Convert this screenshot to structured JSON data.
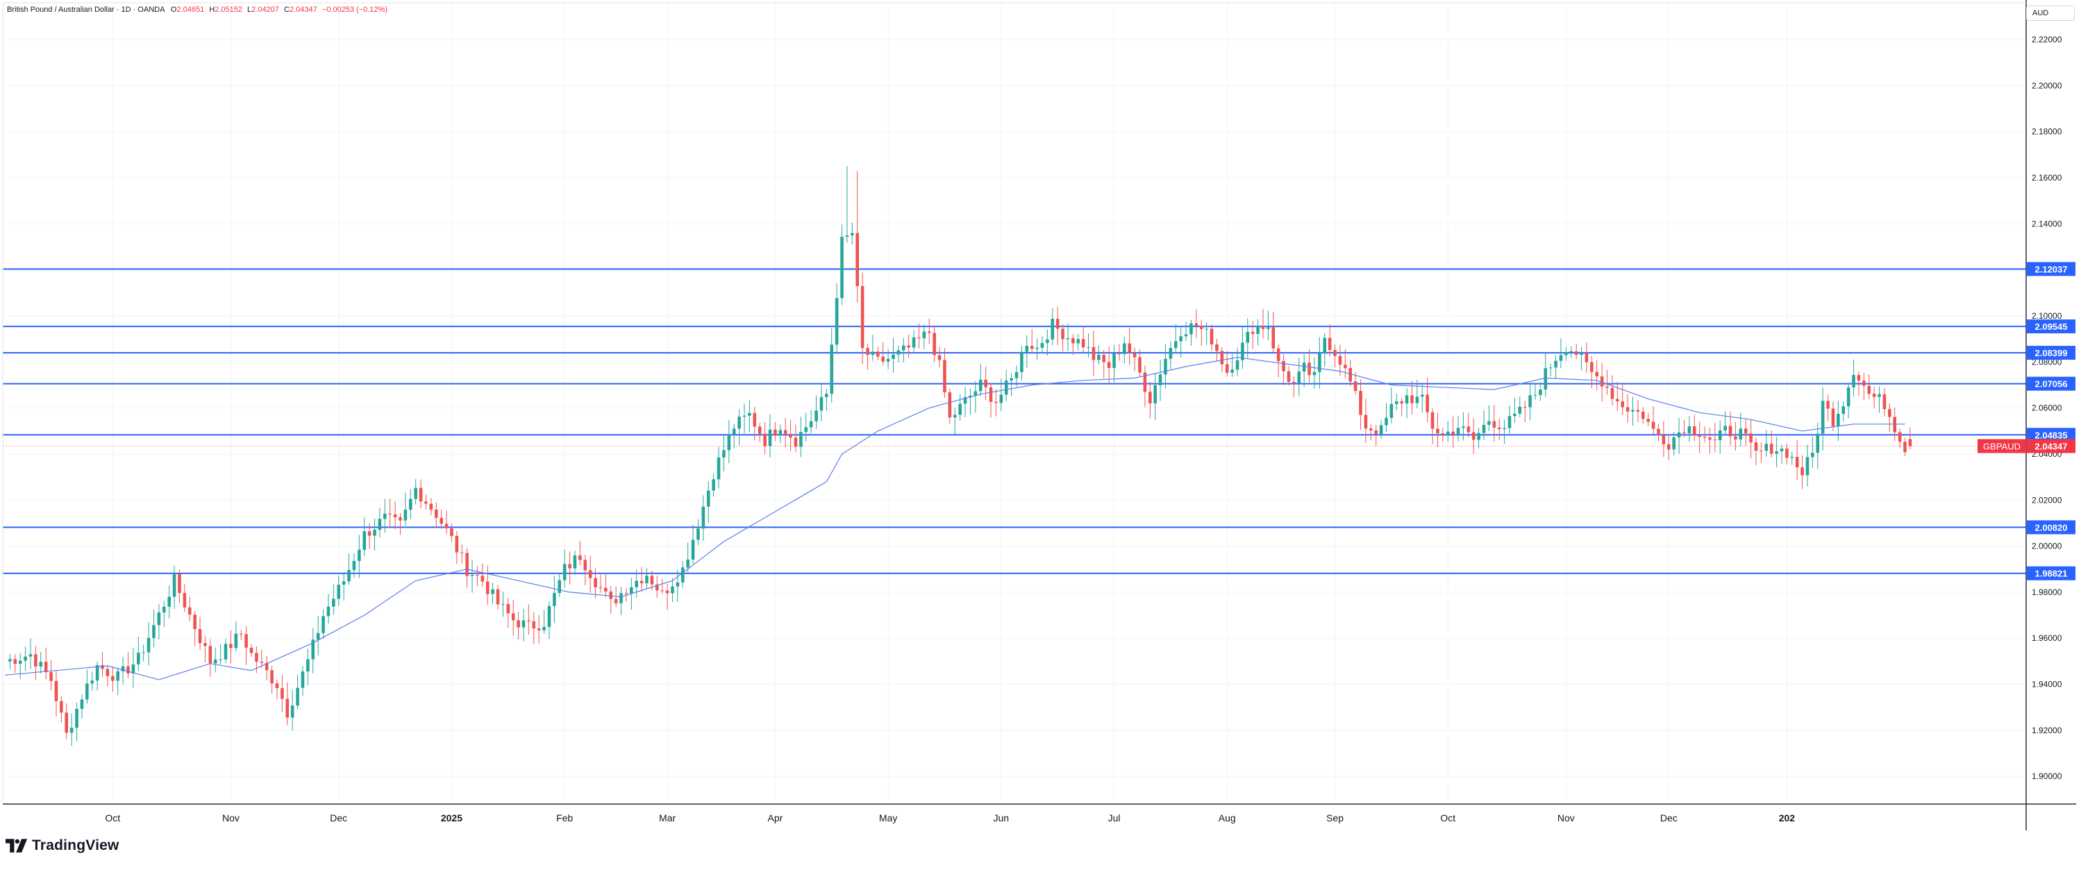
{
  "header": {
    "instrument": "British Pound / Australian Dollar · 1D · OANDA",
    "o_label": "O",
    "o_value": "2.04651",
    "h_label": "H",
    "h_value": "2.05152",
    "l_label": "L",
    "l_value": "2.04207",
    "c_label": "C",
    "c_value": "2.04347",
    "change": "−0.00253 (−0.12%)"
  },
  "currency": "AUD",
  "brand": "TradingView",
  "colors": {
    "up": "#26a69a",
    "down": "#ef5350",
    "ma": "#5b7fe8",
    "hline": "#2962ff",
    "grid": "#f0f3fa",
    "axis_text": "#131722",
    "last_price": "#f23645"
  },
  "chart_data": {
    "type": "candlestick",
    "symbol": "GBPAUD",
    "timeframe": "1D",
    "ylim": [
      1.888,
      2.236
    ],
    "y_ticks": [
      "2.22000",
      "2.20000",
      "2.18000",
      "2.16000",
      "2.14000",
      "2.12000",
      "2.10000",
      "2.08000",
      "2.06000",
      "2.04000",
      "2.02000",
      "2.00000",
      "1.98000",
      "1.96000",
      "1.94000",
      "1.92000",
      "1.90000"
    ],
    "x_ticks": [
      {
        "label": "Oct",
        "bold": false
      },
      {
        "label": "Nov",
        "bold": false
      },
      {
        "label": "Dec",
        "bold": false
      },
      {
        "label": "2025",
        "bold": true
      },
      {
        "label": "Feb",
        "bold": false
      },
      {
        "label": "Mar",
        "bold": false
      },
      {
        "label": "Apr",
        "bold": false
      },
      {
        "label": "May",
        "bold": false
      },
      {
        "label": "Jun",
        "bold": false
      },
      {
        "label": "Jul",
        "bold": false
      },
      {
        "label": "Aug",
        "bold": false
      },
      {
        "label": "Sep",
        "bold": false
      },
      {
        "label": "Oct",
        "bold": false
      },
      {
        "label": "Nov",
        "bold": false
      },
      {
        "label": "Dec",
        "bold": false
      },
      {
        "label": "202",
        "bold": true
      }
    ],
    "horizontal_levels": [
      {
        "value": 2.12037,
        "label": "2.12037"
      },
      {
        "value": 2.09545,
        "label": "2.09545"
      },
      {
        "value": 2.08399,
        "label": "2.08399"
      },
      {
        "value": 2.07056,
        "label": "2.07056"
      },
      {
        "value": 2.04835,
        "label": "2.04835"
      },
      {
        "value": 2.0082,
        "label": "2.00820"
      },
      {
        "value": 1.98821,
        "label": "1.98821"
      }
    ],
    "last_price": {
      "value": 2.04347,
      "label": "2.04347",
      "symbol": "GBPAUD"
    },
    "price_path": [
      [
        0,
        1.95
      ],
      [
        5,
        1.953
      ],
      [
        9,
        1.942
      ],
      [
        12,
        1.918
      ],
      [
        15,
        1.935
      ],
      [
        18,
        1.948
      ],
      [
        22,
        1.943
      ],
      [
        26,
        1.951
      ],
      [
        31,
        1.975
      ],
      [
        33,
        1.985
      ],
      [
        37,
        1.965
      ],
      [
        40,
        1.95
      ],
      [
        43,
        1.955
      ],
      [
        46,
        1.962
      ],
      [
        48,
        1.953
      ],
      [
        53,
        1.94
      ],
      [
        55,
        1.928
      ],
      [
        59,
        1.95
      ],
      [
        62,
        1.97
      ],
      [
        66,
        1.985
      ],
      [
        70,
        2.005
      ],
      [
        74,
        2.012
      ],
      [
        77,
        2.009
      ],
      [
        80,
        2.025
      ],
      [
        84,
        2.014
      ],
      [
        87,
        2.003
      ],
      [
        90,
        1.99
      ],
      [
        93,
        1.985
      ],
      [
        96,
        1.975
      ],
      [
        99,
        1.968
      ],
      [
        102,
        1.965
      ],
      [
        105,
        1.967
      ],
      [
        109,
        1.99
      ],
      [
        112,
        1.996
      ],
      [
        115,
        1.985
      ],
      [
        118,
        1.975
      ],
      [
        121,
        1.982
      ],
      [
        125,
        1.988
      ],
      [
        128,
        1.979
      ],
      [
        132,
        1.99
      ],
      [
        135,
        2.01
      ],
      [
        138,
        2.032
      ],
      [
        142,
        2.052
      ],
      [
        145,
        2.057
      ],
      [
        148,
        2.046
      ],
      [
        151,
        2.053
      ],
      [
        154,
        2.046
      ],
      [
        157,
        2.055
      ],
      [
        160,
        2.066
      ],
      [
        163,
        2.132
      ],
      [
        165,
        2.136
      ],
      [
        167,
        2.085
      ],
      [
        170,
        2.08
      ],
      [
        173,
        2.082
      ],
      [
        176,
        2.086
      ],
      [
        180,
        2.093
      ],
      [
        182,
        2.078
      ],
      [
        184,
        2.055
      ],
      [
        187,
        2.063
      ],
      [
        190,
        2.07
      ],
      [
        193,
        2.063
      ],
      [
        196,
        2.072
      ],
      [
        199,
        2.089
      ],
      [
        201,
        2.086
      ],
      [
        204,
        2.096
      ],
      [
        207,
        2.091
      ],
      [
        210,
        2.088
      ],
      [
        212,
        2.082
      ],
      [
        215,
        2.078
      ],
      [
        218,
        2.089
      ],
      [
        221,
        2.075
      ],
      [
        223,
        2.064
      ],
      [
        226,
        2.082
      ],
      [
        229,
        2.094
      ],
      [
        232,
        2.096
      ],
      [
        235,
        2.09
      ],
      [
        238,
        2.076
      ],
      [
        240,
        2.083
      ],
      [
        243,
        2.095
      ],
      [
        246,
        2.096
      ],
      [
        248,
        2.079
      ],
      [
        251,
        2.07
      ],
      [
        253,
        2.077
      ],
      [
        255,
        2.073
      ],
      [
        257,
        2.091
      ],
      [
        260,
        2.081
      ],
      [
        262,
        2.071
      ],
      [
        265,
        2.052
      ],
      [
        268,
        2.05
      ],
      [
        270,
        2.06
      ],
      [
        273,
        2.065
      ],
      [
        276,
        2.063
      ],
      [
        278,
        2.052
      ],
      [
        280,
        2.048
      ],
      [
        283,
        2.052
      ],
      [
        286,
        2.046
      ],
      [
        289,
        2.055
      ],
      [
        292,
        2.052
      ],
      [
        295,
        2.058
      ],
      [
        298,
        2.066
      ],
      [
        300,
        2.075
      ],
      [
        302,
        2.082
      ],
      [
        304,
        2.087
      ],
      [
        306,
        2.084
      ],
      [
        309,
        2.075
      ],
      [
        311,
        2.072
      ],
      [
        314,
        2.063
      ],
      [
        316,
        2.06
      ],
      [
        319,
        2.057
      ],
      [
        321,
        2.05
      ],
      [
        324,
        2.045
      ],
      [
        327,
        2.052
      ],
      [
        330,
        2.05
      ],
      [
        333,
        2.045
      ],
      [
        335,
        2.05
      ],
      [
        338,
        2.049
      ],
      [
        341,
        2.04
      ],
      [
        344,
        2.043
      ],
      [
        347,
        2.041
      ],
      [
        350,
        2.032
      ],
      [
        352,
        2.04
      ],
      [
        354,
        2.062
      ],
      [
        356,
        2.055
      ],
      [
        358,
        2.063
      ],
      [
        360,
        2.077
      ],
      [
        363,
        2.066
      ],
      [
        366,
        2.062
      ],
      [
        368,
        2.052
      ],
      [
        370,
        2.043
      ]
    ],
    "ma_path": [
      [
        0,
        1.944
      ],
      [
        20,
        1.948
      ],
      [
        30,
        1.942
      ],
      [
        40,
        1.949
      ],
      [
        48,
        1.946
      ],
      [
        52,
        1.95
      ],
      [
        60,
        1.958
      ],
      [
        70,
        1.97
      ],
      [
        80,
        1.985
      ],
      [
        90,
        1.99
      ],
      [
        100,
        1.985
      ],
      [
        110,
        1.98
      ],
      [
        120,
        1.978
      ],
      [
        130,
        1.985
      ],
      [
        140,
        2.002
      ],
      [
        150,
        2.015
      ],
      [
        160,
        2.028
      ],
      [
        163,
        2.04
      ],
      [
        170,
        2.05
      ],
      [
        180,
        2.06
      ],
      [
        190,
        2.066
      ],
      [
        200,
        2.07
      ],
      [
        210,
        2.072
      ],
      [
        220,
        2.073
      ],
      [
        230,
        2.078
      ],
      [
        240,
        2.082
      ],
      [
        250,
        2.079
      ],
      [
        260,
        2.076
      ],
      [
        270,
        2.07
      ],
      [
        280,
        2.069
      ],
      [
        290,
        2.068
      ],
      [
        300,
        2.073
      ],
      [
        310,
        2.072
      ],
      [
        320,
        2.064
      ],
      [
        330,
        2.058
      ],
      [
        340,
        2.055
      ],
      [
        350,
        2.05
      ],
      [
        360,
        2.053
      ],
      [
        370,
        2.053
      ]
    ]
  }
}
